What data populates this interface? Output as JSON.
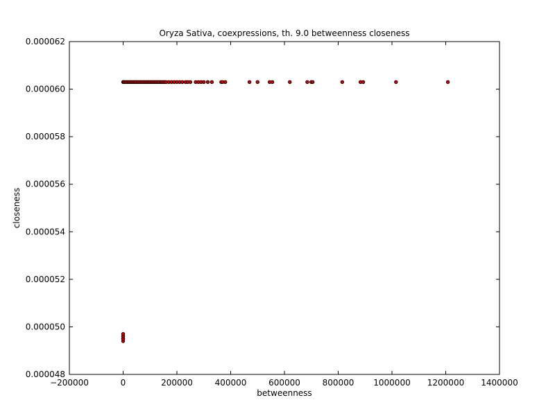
{
  "chart_data": {
    "type": "scatter",
    "title": "Oryza Sativa, coexpressions, th. 9.0 betweenness closeness",
    "xlabel": "betweenness",
    "ylabel": "closeness",
    "xlim": [
      -200000,
      1400000
    ],
    "ylim": [
      4.8e-05,
      6.2e-05
    ],
    "xticks": [
      -200000,
      0,
      200000,
      400000,
      600000,
      800000,
      1000000,
      1200000,
      1400000
    ],
    "xtick_labels": [
      "−200000",
      "0",
      "200000",
      "400000",
      "600000",
      "800000",
      "1000000",
      "1200000",
      "1400000"
    ],
    "yticks": [
      4.8e-05,
      5e-05,
      5.2e-05,
      5.4e-05,
      5.6e-05,
      5.8e-05,
      6e-05,
      6.2e-05
    ],
    "ytick_labels": [
      "0.000048",
      "0.000050",
      "0.000052",
      "0.000054",
      "0.000056",
      "0.000058",
      "0.000060",
      "0.000062"
    ],
    "grid": false,
    "marker_fill": "#cc0000",
    "marker_edge": "#000000",
    "series": [
      {
        "x": [
          0,
          0,
          0,
          0,
          0,
          0,
          0,
          2000,
          5000,
          10000,
          15000,
          20000,
          25000,
          30000,
          35000,
          40000,
          45000,
          50000,
          55000,
          60000,
          65000,
          70000,
          75000,
          80000,
          85000,
          90000,
          95000,
          100000,
          105000,
          110000,
          115000,
          120000,
          125000,
          130000,
          135000,
          140000,
          145000,
          150000,
          155000,
          160000,
          170000,
          180000,
          190000,
          200000,
          210000,
          220000,
          232000,
          240000,
          250000,
          270000,
          280000,
          290000,
          300000,
          315000,
          330000,
          365000,
          370000,
          380000,
          470000,
          500000,
          545000,
          555000,
          620000,
          685000,
          700000,
          705000,
          815000,
          883000,
          893000,
          1015000,
          1208000
        ],
        "y": [
          4.94e-05,
          4.95e-05,
          4.95e-05,
          4.96e-05,
          4.96e-05,
          4.97e-05,
          6.03e-05,
          6.03e-05,
          6.03e-05,
          6.03e-05,
          6.03e-05,
          6.03e-05,
          6.03e-05,
          6.03e-05,
          6.03e-05,
          6.03e-05,
          6.03e-05,
          6.03e-05,
          6.03e-05,
          6.03e-05,
          6.03e-05,
          6.03e-05,
          6.03e-05,
          6.03e-05,
          6.03e-05,
          6.03e-05,
          6.03e-05,
          6.03e-05,
          6.03e-05,
          6.03e-05,
          6.03e-05,
          6.03e-05,
          6.03e-05,
          6.03e-05,
          6.03e-05,
          6.03e-05,
          6.03e-05,
          6.03e-05,
          6.03e-05,
          6.03e-05,
          6.03e-05,
          6.03e-05,
          6.03e-05,
          6.03e-05,
          6.03e-05,
          6.03e-05,
          6.03e-05,
          6.03e-05,
          6.03e-05,
          6.03e-05,
          6.03e-05,
          6.03e-05,
          6.03e-05,
          6.03e-05,
          6.03e-05,
          6.03e-05,
          6.03e-05,
          6.03e-05,
          6.03e-05,
          6.03e-05,
          6.03e-05,
          6.03e-05,
          6.03e-05,
          6.03e-05,
          6.03e-05,
          6.03e-05,
          6.03e-05,
          6.03e-05,
          6.03e-05,
          6.03e-05,
          6.03e-05
        ]
      }
    ]
  }
}
